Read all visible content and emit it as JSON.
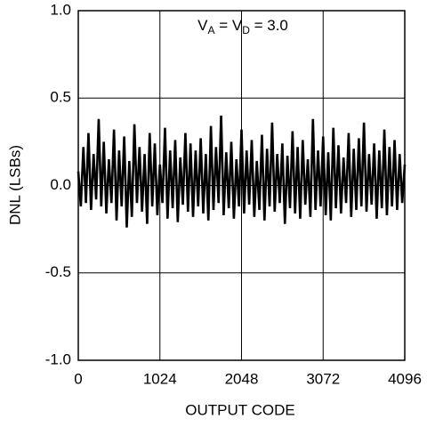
{
  "chart_data": {
    "type": "line",
    "annotation": [
      "V",
      "A",
      " = V",
      "D",
      " = 3.0"
    ],
    "xlabel": "OUTPUT CODE",
    "ylabel": "DNL (LSBs)",
    "xlim": [
      0,
      4096
    ],
    "xticks": [
      0,
      1024,
      2048,
      3072,
      4096
    ],
    "ylim": [
      -1,
      1
    ],
    "yticks": [
      {
        "value": -1,
        "label": "-1.0"
      },
      -0.5,
      {
        "value": 0,
        "label": "0.0"
      },
      0.5,
      {
        "value": 1,
        "label": "1.0"
      }
    ],
    "grid": true,
    "x": [
      0,
      32,
      64,
      96,
      128,
      160,
      192,
      224,
      256,
      288,
      320,
      352,
      384,
      416,
      448,
      480,
      512,
      544,
      576,
      608,
      640,
      672,
      704,
      736,
      768,
      800,
      832,
      864,
      896,
      928,
      960,
      992,
      1024,
      1056,
      1088,
      1120,
      1152,
      1184,
      1216,
      1248,
      1280,
      1312,
      1344,
      1376,
      1408,
      1440,
      1472,
      1504,
      1536,
      1568,
      1600,
      1632,
      1664,
      1696,
      1728,
      1760,
      1792,
      1824,
      1856,
      1888,
      1920,
      1952,
      1984,
      2016,
      2048,
      2080,
      2112,
      2144,
      2176,
      2208,
      2240,
      2272,
      2304,
      2336,
      2368,
      2400,
      2432,
      2464,
      2496,
      2528,
      2560,
      2592,
      2624,
      2656,
      2688,
      2720,
      2752,
      2784,
      2816,
      2848,
      2880,
      2912,
      2944,
      2976,
      3008,
      3040,
      3072,
      3104,
      3136,
      3168,
      3200,
      3232,
      3264,
      3296,
      3328,
      3360,
      3392,
      3424,
      3456,
      3488,
      3520,
      3552,
      3584,
      3616,
      3648,
      3680,
      3712,
      3744,
      3776,
      3808,
      3840,
      3872,
      3904,
      3936,
      3968,
      4000,
      4032,
      4064,
      4096
    ],
    "series": [
      {
        "color": "#000000",
        "values": [
          0.08,
          -0.12,
          0.22,
          -0.1,
          0.3,
          -0.14,
          0.18,
          -0.08,
          0.38,
          -0.12,
          0.25,
          -0.16,
          0.15,
          -0.1,
          0.32,
          -0.2,
          0.2,
          -0.12,
          0.28,
          -0.24,
          0.14,
          -0.18,
          0.35,
          -0.1,
          0.22,
          -0.15,
          0.18,
          -0.22,
          0.3,
          -0.12,
          0.24,
          -0.17,
          0.12,
          -0.1,
          0.33,
          -0.19,
          0.2,
          -0.13,
          0.26,
          -0.21,
          0.16,
          -0.11,
          0.3,
          -0.15,
          0.24,
          -0.18,
          0.2,
          -0.12,
          0.27,
          -0.16,
          0.18,
          -0.2,
          0.34,
          -0.14,
          0.22,
          -0.1,
          0.4,
          -0.17,
          0.19,
          -0.13,
          0.25,
          -0.19,
          0.15,
          -0.12,
          0.32,
          -0.16,
          0.2,
          -0.11,
          0.26,
          -0.18,
          0.14,
          -0.14,
          0.29,
          -0.2,
          0.21,
          -0.12,
          0.36,
          -0.15,
          0.18,
          -0.1,
          0.24,
          -0.22,
          0.17,
          -0.13,
          0.31,
          -0.16,
          0.22,
          -0.19,
          0.26,
          -0.11,
          0.15,
          -0.18,
          0.38,
          -0.14,
          0.2,
          -0.12,
          0.28,
          -0.17,
          0.19,
          -0.2,
          0.33,
          -0.13,
          0.23,
          -0.16,
          0.16,
          -0.1,
          0.3,
          -0.18,
          0.21,
          -0.14,
          0.27,
          -0.12,
          0.36,
          -0.15,
          0.18,
          -0.11,
          0.24,
          -0.19,
          0.2,
          -0.13,
          0.32,
          -0.17,
          0.22,
          -0.12,
          0.26,
          -0.14,
          0.18,
          -0.1,
          0.12
        ]
      }
    ]
  }
}
